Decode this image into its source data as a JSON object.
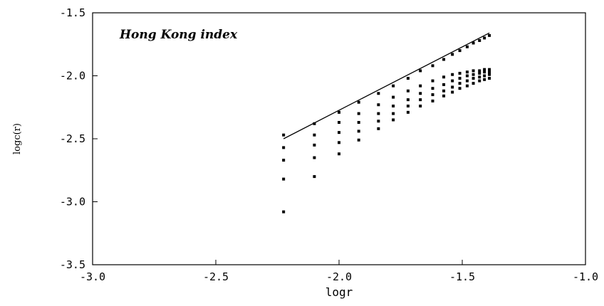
{
  "chart_data": {
    "type": "scatter",
    "title": "",
    "annotation": "Hong Kong index",
    "xlabel": "logr",
    "ylabel": "logc(r)",
    "xlim": [
      -3.0,
      -1.0
    ],
    "ylim": [
      -3.5,
      -1.5
    ],
    "xticks": [
      -3.0,
      -2.5,
      -2.0,
      -1.5,
      -1.0
    ],
    "yticks": [
      -1.5,
      -2.0,
      -2.5,
      -3.0,
      -3.5
    ],
    "xtick_labels": [
      "-3.0",
      "-2.5",
      "-2.0",
      "-1.5",
      "-1.0"
    ],
    "ytick_labels": [
      "-1.5",
      "-2.0",
      "-2.5",
      "-3.0",
      "-3.5"
    ],
    "grid": false,
    "x": [
      -2.225,
      -2.1,
      -2.0,
      -1.92,
      -1.84,
      -1.78,
      -1.72,
      -1.67,
      -1.62,
      -1.575,
      -1.54,
      -1.51,
      -1.48,
      -1.455,
      -1.43,
      -1.41,
      -1.39
    ],
    "series": [
      {
        "values": [
          -2.47,
          -2.38,
          -2.29,
          -2.21,
          -2.14,
          -2.08,
          -2.02,
          -1.96,
          -1.92,
          -1.87,
          -1.83,
          -1.8,
          -1.77,
          -1.74,
          -1.72,
          -1.7,
          -1.68
        ]
      },
      {
        "values": [
          -2.57,
          -2.47,
          -2.37,
          -2.3,
          -2.23,
          -2.17,
          -2.12,
          -2.08,
          -2.04,
          -2.01,
          -1.99,
          -1.98,
          -1.97,
          -1.96,
          -1.96,
          -1.95,
          -1.95
        ]
      },
      {
        "values": [
          -2.67,
          -2.55,
          -2.45,
          -2.37,
          -2.3,
          -2.24,
          -2.19,
          -2.14,
          -2.1,
          -2.07,
          -2.04,
          -2.02,
          -2.0,
          -1.99,
          -1.98,
          -1.97,
          -1.97
        ]
      },
      {
        "values": [
          -2.82,
          -2.65,
          -2.53,
          -2.44,
          -2.36,
          -2.3,
          -2.24,
          -2.19,
          -2.15,
          -2.12,
          -2.09,
          -2.06,
          -2.04,
          -2.02,
          -2.01,
          -2.0,
          -1.99
        ]
      },
      {
        "values": [
          -3.08,
          -2.8,
          -2.62,
          -2.51,
          -2.42,
          -2.35,
          -2.29,
          -2.24,
          -2.2,
          -2.16,
          -2.13,
          -2.1,
          -2.08,
          -2.06,
          -2.04,
          -2.03,
          -2.02
        ]
      }
    ],
    "fit_line": {
      "x": [
        -2.225,
        -1.39
      ],
      "y": [
        -2.5,
        -1.66
      ]
    }
  }
}
